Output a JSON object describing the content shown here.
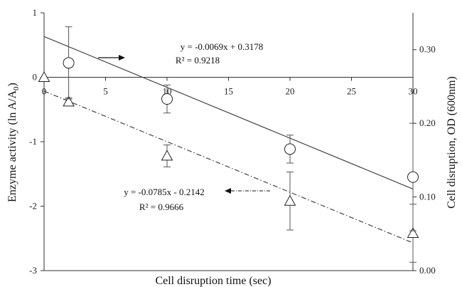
{
  "chart_data": {
    "type": "scatter",
    "xlabel": "Cell disruption time (sec)",
    "ylabel_left": "Enzyme activity (ln A/A",
    "ylabel_left_sub": "0",
    "ylabel_left_close": ")",
    "ylabel_right": "Cell disruption, OD (600nm)",
    "xlim": [
      0,
      30
    ],
    "ylim_left": [
      -3,
      1
    ],
    "ylim_right": [
      0,
      0.35
    ],
    "x_ticks": [
      "0",
      "5",
      "10",
      "15",
      "20",
      "25",
      "30"
    ],
    "y_left_ticks": [
      "1",
      "0",
      "-1",
      "-2",
      "-3"
    ],
    "y_right_ticks": [
      "0.30",
      "0.20",
      "0.10",
      "0.00"
    ],
    "series": [
      {
        "marker": "triangle",
        "axis": "left",
        "x": [
          0,
          2,
          10,
          20,
          30
        ],
        "y": [
          0.0,
          -0.38,
          -1.22,
          -1.92,
          -2.42
        ],
        "err": [
          0.0,
          0.06,
          0.17,
          0.45,
          0.45
        ],
        "trend": {
          "slope": -0.0785,
          "intercept": -0.2142,
          "style": "dashdot"
        }
      },
      {
        "marker": "circle",
        "axis": "right",
        "x": [
          2,
          10,
          20,
          30
        ],
        "y": [
          0.282,
          0.233,
          0.165,
          0.127
        ],
        "err": [
          0.049,
          0.019,
          0.019,
          0.073
        ],
        "trend": {
          "slope": -0.0069,
          "intercept": 0.3178,
          "style": "solid"
        }
      }
    ],
    "annotations": [
      {
        "line1": "y = -0.0069x + 0.3178",
        "line2": "R² = 0.9218",
        "arrow": "right"
      },
      {
        "line1": "y = -0.0785x - 0.2142",
        "line2": "R² = 0.9666",
        "arrow": "left"
      }
    ]
  }
}
